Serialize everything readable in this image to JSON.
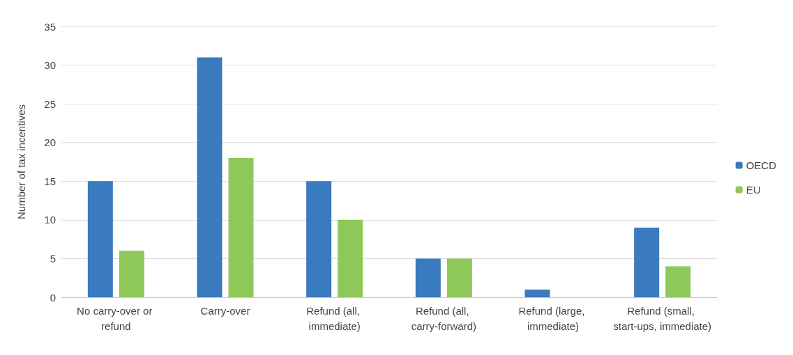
{
  "chart_data": {
    "type": "bar",
    "ylabel": "Number of tax incentives",
    "categories": [
      "No carry-over or refund",
      "Carry-over",
      "Refund (all, immediate)",
      "Refund (all, carry-forward)",
      "Refund (large, immediate)",
      "Refund (small, start-ups, immediate)"
    ],
    "series": [
      {
        "name": "OECD",
        "color": "#3a7abf",
        "values": [
          15,
          31,
          15,
          5,
          1,
          9
        ]
      },
      {
        "name": "EU",
        "color": "#8fc85a",
        "values": [
          6,
          18,
          10,
          5,
          0,
          4
        ]
      }
    ],
    "ylim": [
      0,
      35
    ],
    "yticks": [
      0,
      5,
      10,
      15,
      20,
      25,
      30,
      35
    ],
    "grid": "y",
    "legend": "right"
  }
}
